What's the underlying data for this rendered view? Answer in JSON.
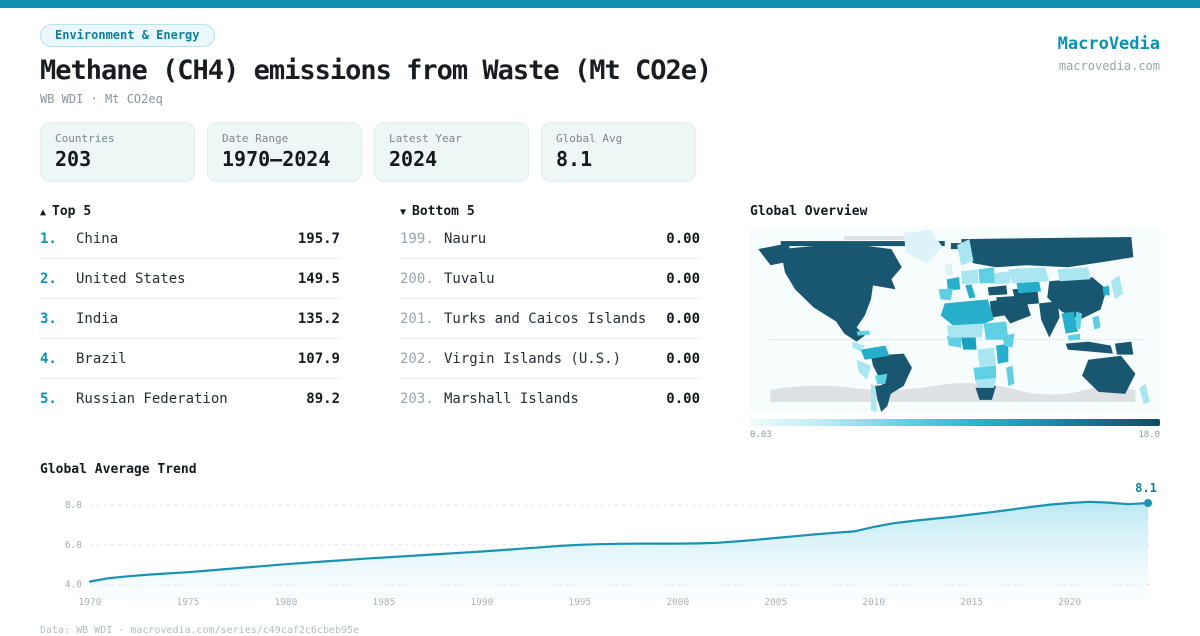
{
  "theme": {
    "teal": "#0d91b0",
    "teal-dark": "#0f7f9e",
    "ink": "#15191e",
    "muted": "#8b959b",
    "line": "#1a93b2",
    "grid": "#dde6ea",
    "map-dark": "#19566f",
    "map-deep": "#1a9fbe",
    "map-medium": "#27aecb",
    "map-cyan": "#5fd0e4",
    "map-light": "#a9e6f1",
    "map-pale": "#ddf3f8",
    "map-gray": "#dde1e4"
  },
  "header": {
    "badge": "Environment & Energy",
    "title": "Methane (CH4) emissions from Waste (Mt CO2e)",
    "subtitle": "WB WDI · Mt CO2eq",
    "brand_name": "MacroVedia",
    "brand_domain": "macrovedia.com"
  },
  "stats": [
    {
      "label": "Countries",
      "value": "203"
    },
    {
      "label": "Date Range",
      "value": "1970–2024"
    },
    {
      "label": "Latest Year",
      "value": "2024"
    },
    {
      "label": "Global Avg",
      "value": "8.1"
    }
  ],
  "top5": {
    "arrow": "▲",
    "title": "Top 5",
    "rows": [
      {
        "rank": "1.",
        "name": "China",
        "value": "195.7"
      },
      {
        "rank": "2.",
        "name": "United States",
        "value": "149.5"
      },
      {
        "rank": "3.",
        "name": "India",
        "value": "135.2"
      },
      {
        "rank": "4.",
        "name": "Brazil",
        "value": "107.9"
      },
      {
        "rank": "5.",
        "name": "Russian Federation",
        "value": "89.2"
      }
    ]
  },
  "bottom5": {
    "arrow": "▼",
    "title": "Bottom 5",
    "rows": [
      {
        "rank": "199.",
        "name": "Nauru",
        "value": "0.00"
      },
      {
        "rank": "200.",
        "name": "Tuvalu",
        "value": "0.00"
      },
      {
        "rank": "201.",
        "name": "Turks and Caicos Islands",
        "value": "0.00"
      },
      {
        "rank": "202.",
        "name": "Virgin Islands (U.S.)",
        "value": "0.00"
      },
      {
        "rank": "203.",
        "name": "Marshall Islands",
        "value": "0.00"
      }
    ]
  },
  "map_panel": {
    "title": "Global Overview",
    "type": "choropleth",
    "scale_min": "0.03",
    "scale_max": "18.0"
  },
  "chart_data": {
    "type": "area",
    "title": "Global Average Trend",
    "xlabel": "",
    "ylabel": "",
    "xlim": [
      1970,
      2024
    ],
    "ylim": [
      3.6,
      8.6
    ],
    "yticks": [
      4.0,
      6.0,
      8.0
    ],
    "xticks": [
      1970,
      1975,
      1980,
      1985,
      1990,
      1995,
      2000,
      2005,
      2010,
      2015,
      2020
    ],
    "grid": "dashed-horizontal",
    "legend": "none",
    "end_label": "8.1",
    "x": [
      1970,
      1971,
      1972,
      1973,
      1974,
      1975,
      1976,
      1977,
      1978,
      1979,
      1980,
      1981,
      1982,
      1983,
      1984,
      1985,
      1986,
      1987,
      1988,
      1989,
      1990,
      1991,
      1992,
      1993,
      1994,
      1995,
      1996,
      1997,
      1998,
      1999,
      2000,
      2001,
      2002,
      2003,
      2004,
      2005,
      2006,
      2007,
      2008,
      2009,
      2010,
      2011,
      2012,
      2013,
      2014,
      2015,
      2016,
      2017,
      2018,
      2019,
      2020,
      2021,
      2022,
      2023,
      2024
    ],
    "values": [
      4.15,
      4.32,
      4.42,
      4.5,
      4.56,
      4.62,
      4.7,
      4.78,
      4.86,
      4.94,
      5.02,
      5.09,
      5.16,
      5.23,
      5.3,
      5.36,
      5.42,
      5.48,
      5.54,
      5.6,
      5.66,
      5.73,
      5.8,
      5.87,
      5.94,
      6.0,
      6.03,
      6.05,
      6.06,
      6.06,
      6.06,
      6.07,
      6.1,
      6.17,
      6.25,
      6.34,
      6.43,
      6.52,
      6.6,
      6.67,
      6.9,
      7.08,
      7.2,
      7.3,
      7.4,
      7.52,
      7.64,
      7.77,
      7.9,
      8.02,
      8.1,
      8.16,
      8.12,
      8.04,
      8.1
    ]
  },
  "footer": {
    "text": "Data: WB WDI · macrovedia.com/series/c49caf2c6cbeb95e"
  }
}
